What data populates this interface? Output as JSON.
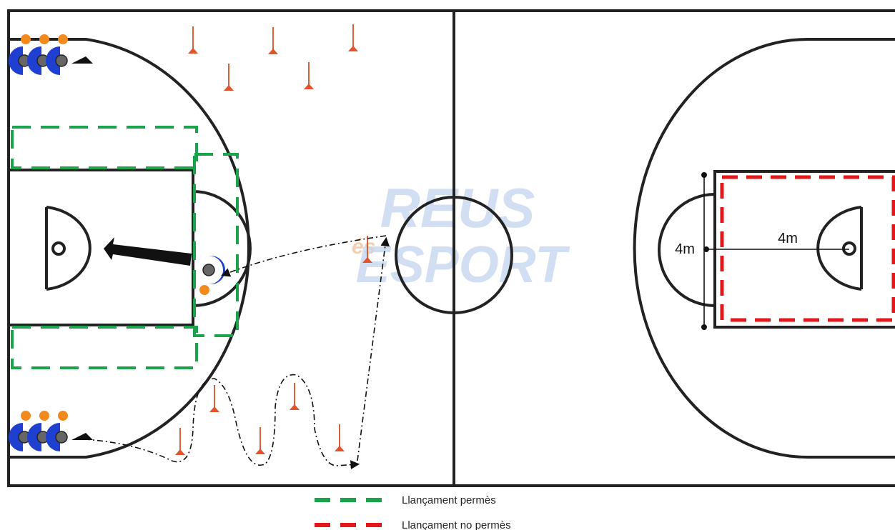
{
  "logo": {
    "top": "REUS",
    "middle": "és",
    "bottom": "ESPORT"
  },
  "court": {
    "labels": [
      "4m",
      "4m"
    ]
  },
  "legend": [
    {
      "label": "Llançament permès",
      "color": "#1aa34a"
    },
    {
      "label": "Llançament no permès",
      "color": "#e3161b"
    }
  ]
}
